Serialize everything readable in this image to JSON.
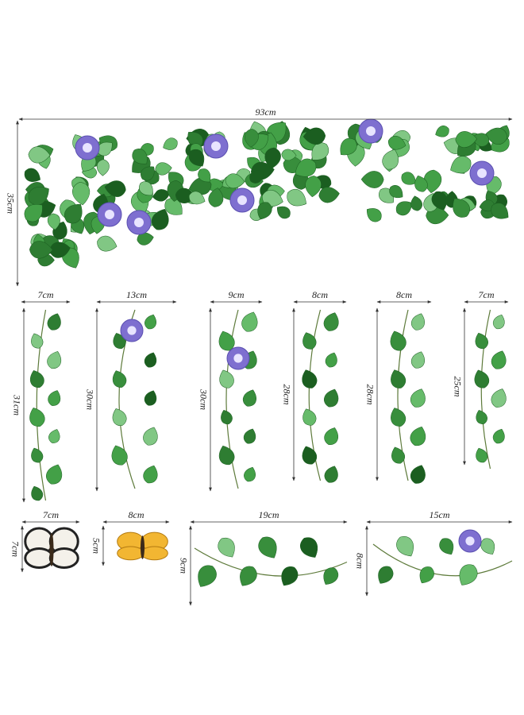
{
  "stickers": [
    {
      "width": "93cm",
      "height": "35cm"
    },
    {
      "width": "7cm",
      "height": "31cm"
    },
    {
      "width": "13cm",
      "height": "30cm"
    },
    {
      "width": "9cm",
      "height": "30cm"
    },
    {
      "width": "8cm",
      "height": "28cm"
    },
    {
      "width": "8cm",
      "height": "28cm"
    },
    {
      "width": "7cm",
      "height": "25cm"
    },
    {
      "width": "7cm",
      "height": "7cm"
    },
    {
      "width": "8cm",
      "height": "5cm"
    },
    {
      "width": "19cm",
      "height": "9cm"
    },
    {
      "width": "15cm",
      "height": "8cm"
    }
  ]
}
